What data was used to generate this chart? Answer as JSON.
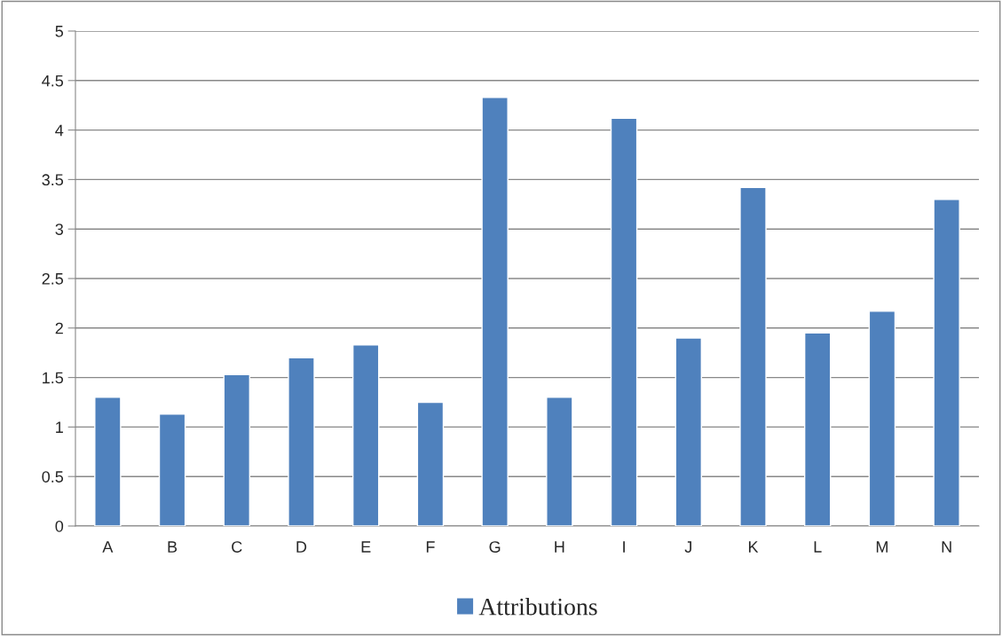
{
  "chart_data": {
    "type": "bar",
    "categories": [
      "A",
      "B",
      "C",
      "D",
      "E",
      "F",
      "G",
      "H",
      "I",
      "J",
      "K",
      "L",
      "M",
      "N"
    ],
    "series": [
      {
        "name": "Attributions",
        "color": "#4f81bd",
        "values": [
          1.3,
          1.13,
          1.53,
          1.7,
          1.83,
          1.25,
          4.33,
          1.3,
          4.12,
          1.9,
          3.42,
          1.95,
          2.17,
          3.3
        ]
      }
    ],
    "ylim": [
      0,
      5
    ],
    "yticks": [
      0,
      0.5,
      1,
      1.5,
      2,
      2.5,
      3,
      3.5,
      4,
      4.5,
      5
    ],
    "grid": "y",
    "legend": "bottom"
  }
}
